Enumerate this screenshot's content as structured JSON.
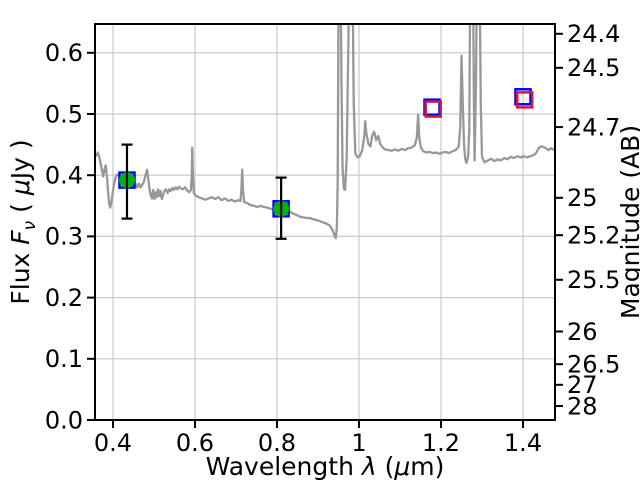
{
  "labels": {
    "xlabel": {
      "t1": "Wavelength ",
      "lambda": "λ",
      "t2": " (",
      "mu": "μ",
      "t3": "m)"
    },
    "ylabel_left": {
      "t1": "Flux ",
      "F": "F",
      "nu": "ν",
      "t2": " ( ",
      "mu": "μ",
      "t3": "Jy )"
    },
    "ylabel_right": {
      "t1": "Magnitude (AB)"
    }
  },
  "chart_data": {
    "type": "line",
    "title": "",
    "xlabel": "Wavelength λ (μm)",
    "ylabel_left": "Flux Fν ( μJy )",
    "ylabel_right": "Magnitude (AB)",
    "xlim": [
      0.356,
      1.478
    ],
    "ylim": [
      0,
      0.647
    ],
    "grid": true,
    "grid_color": "#c9c9c9",
    "frame_color": "#000000",
    "x_ticks": [
      0.4,
      0.6,
      0.8,
      1.0,
      1.2,
      1.4
    ],
    "x_tick_labels": [
      "0.4",
      "0.6",
      "0.8",
      "1",
      "1.2",
      "1.4"
    ],
    "y_ticks_left": [
      0.0,
      0.1,
      0.2,
      0.3,
      0.4,
      0.5,
      0.6
    ],
    "y_tick_labels_left": [
      "0.0",
      "0.1",
      "0.2",
      "0.3",
      "0.4",
      "0.5",
      "0.6"
    ],
    "y_ticks_right_mag": [
      24.4,
      24.5,
      24.7,
      25,
      25.2,
      25.5,
      26,
      26.5,
      27,
      28
    ],
    "y_tick_labels_right": [
      "24.4",
      "24.5",
      "24.7",
      "25",
      "25.2",
      "25.5",
      "26",
      "26.5",
      "27",
      "28"
    ],
    "mag_zeropoint_uJy": 23.9,
    "series": [
      {
        "name": "spectrum-line",
        "type": "line",
        "color": "#989898",
        "linewidth": 2.3,
        "points": [
          [
            0.356,
            0.43
          ],
          [
            0.36,
            0.433
          ],
          [
            0.363,
            0.437
          ],
          [
            0.367,
            0.428
          ],
          [
            0.371,
            0.415
          ],
          [
            0.374,
            0.404
          ],
          [
            0.376,
            0.398
          ],
          [
            0.379,
            0.409
          ],
          [
            0.382,
            0.416
          ],
          [
            0.385,
            0.399
          ],
          [
            0.388,
            0.373
          ],
          [
            0.391,
            0.353
          ],
          [
            0.393,
            0.347
          ],
          [
            0.396,
            0.356
          ],
          [
            0.399,
            0.37
          ],
          [
            0.402,
            0.384
          ],
          [
            0.406,
            0.396
          ],
          [
            0.41,
            0.401
          ],
          [
            0.415,
            0.399
          ],
          [
            0.421,
            0.396
          ],
          [
            0.427,
            0.394
          ],
          [
            0.433,
            0.392
          ],
          [
            0.439,
            0.39
          ],
          [
            0.443,
            0.386
          ],
          [
            0.447,
            0.39
          ],
          [
            0.451,
            0.381
          ],
          [
            0.455,
            0.386
          ],
          [
            0.459,
            0.38
          ],
          [
            0.463,
            0.386
          ],
          [
            0.467,
            0.38
          ],
          [
            0.471,
            0.384
          ],
          [
            0.475,
            0.389
          ],
          [
            0.479,
            0.399
          ],
          [
            0.483,
            0.409
          ],
          [
            0.486,
            0.394
          ],
          [
            0.489,
            0.377
          ],
          [
            0.492,
            0.367
          ],
          [
            0.495,
            0.362
          ],
          [
            0.498,
            0.376
          ],
          [
            0.501,
            0.361
          ],
          [
            0.504,
            0.372
          ],
          [
            0.507,
            0.364
          ],
          [
            0.51,
            0.377
          ],
          [
            0.513,
            0.366
          ],
          [
            0.516,
            0.374
          ],
          [
            0.519,
            0.361
          ],
          [
            0.522,
            0.368
          ],
          [
            0.525,
            0.374
          ],
          [
            0.529,
            0.377
          ],
          [
            0.533,
            0.371
          ],
          [
            0.537,
            0.377
          ],
          [
            0.541,
            0.374
          ],
          [
            0.545,
            0.379
          ],
          [
            0.549,
            0.376
          ],
          [
            0.553,
            0.38
          ],
          [
            0.557,
            0.377
          ],
          [
            0.561,
            0.381
          ],
          [
            0.566,
            0.378
          ],
          [
            0.571,
            0.377
          ],
          [
            0.576,
            0.38
          ],
          [
            0.581,
            0.375
          ],
          [
            0.586,
            0.372
          ],
          [
            0.59,
            0.376
          ],
          [
            0.592,
            0.399
          ],
          [
            0.593,
            0.445
          ],
          [
            0.595,
            0.398
          ],
          [
            0.597,
            0.371
          ],
          [
            0.601,
            0.367
          ],
          [
            0.609,
            0.364
          ],
          [
            0.617,
            0.362
          ],
          [
            0.625,
            0.36
          ],
          [
            0.633,
            0.362
          ],
          [
            0.641,
            0.364
          ],
          [
            0.649,
            0.361
          ],
          [
            0.657,
            0.364
          ],
          [
            0.665,
            0.359
          ],
          [
            0.673,
            0.362
          ],
          [
            0.681,
            0.358
          ],
          [
            0.689,
            0.36
          ],
          [
            0.697,
            0.357
          ],
          [
            0.705,
            0.359
          ],
          [
            0.711,
            0.358
          ],
          [
            0.713,
            0.377
          ],
          [
            0.715,
            0.409
          ],
          [
            0.717,
            0.376
          ],
          [
            0.72,
            0.356
          ],
          [
            0.728,
            0.354
          ],
          [
            0.736,
            0.351
          ],
          [
            0.744,
            0.35
          ],
          [
            0.752,
            0.348
          ],
          [
            0.76,
            0.35
          ],
          [
            0.768,
            0.348
          ],
          [
            0.776,
            0.347
          ],
          [
            0.784,
            0.345
          ],
          [
            0.792,
            0.344
          ],
          [
            0.8,
            0.346
          ],
          [
            0.808,
            0.345
          ],
          [
            0.816,
            0.343
          ],
          [
            0.824,
            0.342
          ],
          [
            0.832,
            0.34
          ],
          [
            0.84,
            0.337
          ],
          [
            0.848,
            0.335
          ],
          [
            0.856,
            0.332
          ],
          [
            0.864,
            0.331
          ],
          [
            0.872,
            0.33
          ],
          [
            0.88,
            0.33
          ],
          [
            0.888,
            0.328
          ],
          [
            0.896,
            0.327
          ],
          [
            0.904,
            0.325
          ],
          [
            0.912,
            0.323
          ],
          [
            0.92,
            0.321
          ],
          [
            0.928,
            0.318
          ],
          [
            0.935,
            0.311
          ],
          [
            0.94,
            0.302
          ],
          [
            0.943,
            0.297
          ],
          [
            0.946,
            0.315
          ],
          [
            0.948,
            0.39
          ],
          [
            0.951,
            0.8
          ],
          [
            0.954,
            0.82
          ],
          [
            0.957,
            0.56
          ],
          [
            0.96,
            0.41
          ],
          [
            0.963,
            0.378
          ],
          [
            0.966,
            0.376
          ],
          [
            0.97,
            0.43
          ],
          [
            0.974,
            0.62
          ],
          [
            0.978,
            0.82
          ],
          [
            0.983,
            0.8
          ],
          [
            0.987,
            0.52
          ],
          [
            0.991,
            0.436
          ],
          [
            0.996,
            0.429
          ],
          [
            1.002,
            0.431
          ],
          [
            1.008,
            0.441
          ],
          [
            1.013,
            0.466
          ],
          [
            1.015,
            0.488
          ],
          [
            1.018,
            0.468
          ],
          [
            1.023,
            0.451
          ],
          [
            1.028,
            0.447
          ],
          [
            1.032,
            0.464
          ],
          [
            1.037,
            0.471
          ],
          [
            1.042,
            0.457
          ],
          [
            1.047,
            0.464
          ],
          [
            1.052,
            0.451
          ],
          [
            1.058,
            0.445
          ],
          [
            1.064,
            0.442
          ],
          [
            1.072,
            0.441
          ],
          [
            1.08,
            0.44
          ],
          [
            1.088,
            0.442
          ],
          [
            1.096,
            0.44
          ],
          [
            1.104,
            0.443
          ],
          [
            1.112,
            0.441
          ],
          [
            1.12,
            0.444
          ],
          [
            1.128,
            0.445
          ],
          [
            1.136,
            0.449
          ],
          [
            1.141,
            0.461
          ],
          [
            1.144,
            0.499
          ],
          [
            1.147,
            0.461
          ],
          [
            1.151,
            0.445
          ],
          [
            1.157,
            0.439
          ],
          [
            1.164,
            0.437
          ],
          [
            1.172,
            0.438
          ],
          [
            1.18,
            0.436
          ],
          [
            1.188,
            0.437
          ],
          [
            1.196,
            0.435
          ],
          [
            1.204,
            0.437
          ],
          [
            1.212,
            0.438
          ],
          [
            1.22,
            0.436
          ],
          [
            1.228,
            0.439
          ],
          [
            1.236,
            0.441
          ],
          [
            1.243,
            0.447
          ],
          [
            1.247,
            0.48
          ],
          [
            1.25,
            0.595
          ],
          [
            1.253,
            0.515
          ],
          [
            1.256,
            0.452
          ],
          [
            1.259,
            0.427
          ],
          [
            1.262,
            0.42
          ],
          [
            1.266,
            0.429
          ],
          [
            1.269,
            0.475
          ],
          [
            1.272,
            0.8
          ],
          [
            1.277,
            0.82
          ],
          [
            1.28,
            0.54
          ],
          [
            1.282,
            0.424
          ],
          [
            1.285,
            0.545
          ],
          [
            1.289,
            0.82
          ],
          [
            1.293,
            0.8
          ],
          [
            1.297,
            0.515
          ],
          [
            1.3,
            0.43
          ],
          [
            1.306,
            0.421
          ],
          [
            1.314,
            0.424
          ],
          [
            1.322,
            0.427
          ],
          [
            1.33,
            0.423
          ],
          [
            1.338,
            0.426
          ],
          [
            1.346,
            0.424
          ],
          [
            1.354,
            0.428
          ],
          [
            1.362,
            0.426
          ],
          [
            1.37,
            0.43
          ],
          [
            1.378,
            0.428
          ],
          [
            1.386,
            0.431
          ],
          [
            1.394,
            0.429
          ],
          [
            1.402,
            0.431
          ],
          [
            1.41,
            0.429
          ],
          [
            1.418,
            0.431
          ],
          [
            1.426,
            0.433
          ],
          [
            1.432,
            0.436
          ],
          [
            1.438,
            0.444
          ],
          [
            1.444,
            0.447
          ],
          [
            1.45,
            0.446
          ],
          [
            1.456,
            0.444
          ],
          [
            1.462,
            0.441
          ],
          [
            1.468,
            0.444
          ],
          [
            1.474,
            0.442
          ],
          [
            1.478,
            0.441
          ]
        ]
      },
      {
        "name": "photometry-detections",
        "type": "scatter",
        "marker": "green-circle-in-blue-square",
        "face_color": "#00b300",
        "edge_color": "#0000ff",
        "errorbar_color": "#000000",
        "points": [
          {
            "x": 0.434,
            "y": 0.392,
            "yerr_plus": 0.058,
            "yerr_minus": 0.063
          },
          {
            "x": 0.81,
            "y": 0.345,
            "yerr_plus": 0.051,
            "yerr_minus": 0.049
          }
        ]
      },
      {
        "name": "photometry-open-squares-blue",
        "type": "scatter",
        "marker": "open-square",
        "edge_color": "#0000ff",
        "points": [
          {
            "x": 1.178,
            "y": 0.511
          },
          {
            "x": 1.4,
            "y": 0.528
          }
        ]
      },
      {
        "name": "photometry-open-squares-crimson",
        "type": "scatter",
        "marker": "open-square",
        "edge_color": "#dc143c",
        "points": [
          {
            "x": 1.181,
            "y": 0.508
          },
          {
            "x": 1.404,
            "y": 0.523
          }
        ]
      }
    ]
  }
}
